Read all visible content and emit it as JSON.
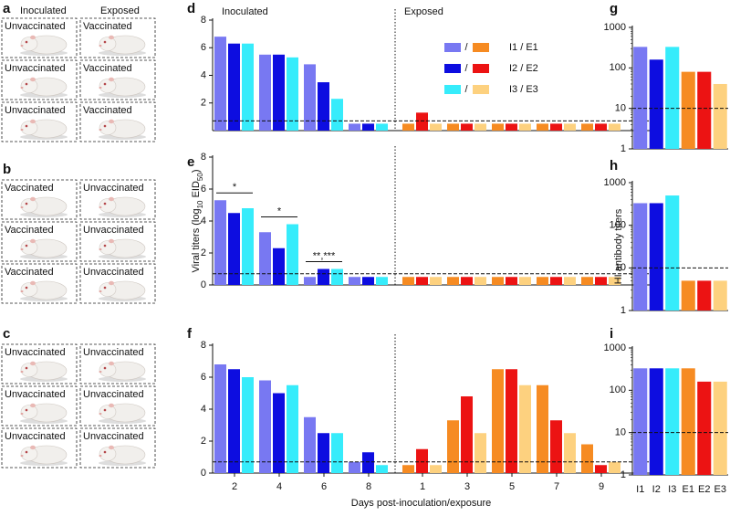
{
  "panels": [
    {
      "letter": "a",
      "header": [
        "Inoculated",
        "Exposed"
      ],
      "rows": [
        [
          "Unvaccinated",
          "Vaccinated"
        ],
        [
          "Unvaccinated",
          "Vaccinated"
        ],
        [
          "Unvaccinated",
          "Vaccinated"
        ]
      ]
    },
    {
      "letter": "b",
      "rows": [
        [
          "Vaccinated",
          "Unvaccinated"
        ],
        [
          "Vaccinated",
          "Unvaccinated"
        ],
        [
          "Vaccinated",
          "Unvaccinated"
        ]
      ]
    },
    {
      "letter": "c",
      "rows": [
        [
          "Unvaccinated",
          "Unvaccinated"
        ],
        [
          "Unvaccinated",
          "Unvaccinated"
        ],
        [
          "Unvaccinated",
          "Unvaccinated"
        ]
      ]
    }
  ],
  "chart_data": [
    {
      "type": "bar",
      "letter": "d",
      "top_labels": [
        "Inoculated",
        "Exposed"
      ],
      "categories": [
        null,
        null,
        null,
        null,
        null,
        null,
        null,
        null,
        null
      ],
      "ylim": [
        0,
        8
      ],
      "yticks": [
        2,
        4,
        6,
        8
      ],
      "threshold": 0.7,
      "legend": [
        {
          "sep": "/",
          "label": "I1 / E1"
        },
        {
          "sep": "/",
          "label": "I2 / E2"
        },
        {
          "sep": "/",
          "label": "I3 / E3"
        }
      ],
      "series": [
        {
          "color": "#7878f2",
          "values": [
            6.8,
            5.5,
            4.8,
            0.5,
            null,
            null,
            null,
            null,
            null
          ]
        },
        {
          "color": "#0d0de0",
          "values": [
            6.3,
            5.5,
            3.5,
            0.5,
            null,
            null,
            null,
            null,
            null
          ]
        },
        {
          "color": "#36ecfb",
          "values": [
            6.3,
            5.3,
            2.3,
            0.5,
            null,
            null,
            null,
            null,
            null
          ]
        },
        {
          "color": "#f68b22",
          "values": [
            null,
            null,
            null,
            null,
            0.5,
            0.5,
            0.5,
            0.5,
            0.5
          ]
        },
        {
          "color": "#ec1313",
          "values": [
            null,
            null,
            null,
            null,
            1.3,
            0.5,
            0.5,
            0.5,
            0.5
          ]
        },
        {
          "color": "#fdd17f",
          "values": [
            null,
            null,
            null,
            null,
            0.5,
            0.5,
            0.5,
            0.5,
            0.5
          ]
        }
      ]
    },
    {
      "type": "bar",
      "letter": "e",
      "ylabel": [
        "Viral titers (log",
        "10",
        " EID",
        "50",
        ")"
      ],
      "categories": [
        null,
        null,
        null,
        null,
        null,
        null,
        null,
        null,
        null
      ],
      "ylim": [
        0,
        8
      ],
      "yticks": [
        0,
        2,
        4,
        6,
        8
      ],
      "threshold": 0.7,
      "annotations": [
        "*",
        "*",
        "**,***"
      ],
      "series": [
        {
          "color": "#7878f2",
          "values": [
            5.3,
            3.3,
            0.5,
            0.5,
            null,
            null,
            null,
            null,
            null
          ]
        },
        {
          "color": "#0d0de0",
          "values": [
            4.5,
            2.3,
            1.0,
            0.5,
            null,
            null,
            null,
            null,
            null
          ]
        },
        {
          "color": "#36ecfb",
          "values": [
            4.8,
            3.8,
            1.0,
            0.5,
            null,
            null,
            null,
            null,
            null
          ]
        },
        {
          "color": "#f68b22",
          "values": [
            null,
            null,
            null,
            null,
            0.5,
            0.5,
            0.5,
            0.5,
            0.5
          ]
        },
        {
          "color": "#ec1313",
          "values": [
            null,
            null,
            null,
            null,
            0.5,
            0.5,
            0.5,
            0.5,
            0.5
          ]
        },
        {
          "color": "#fdd17f",
          "values": [
            null,
            null,
            null,
            null,
            0.5,
            0.5,
            0.5,
            0.5,
            0.5
          ]
        }
      ]
    },
    {
      "type": "bar",
      "letter": "f",
      "xlabel": "Days post-inoculation/exposure",
      "categories": [
        "2",
        "4",
        "6",
        "8",
        "1",
        "3",
        "5",
        "7",
        "9"
      ],
      "ylim": [
        0,
        8
      ],
      "yticks": [
        0,
        2,
        4,
        6,
        8
      ],
      "threshold": 0.7,
      "series": [
        {
          "color": "#7878f2",
          "values": [
            6.8,
            5.8,
            3.5,
            0.7,
            null,
            null,
            null,
            null,
            null
          ]
        },
        {
          "color": "#0d0de0",
          "values": [
            6.5,
            5.0,
            2.5,
            1.3,
            null,
            null,
            null,
            null,
            null
          ]
        },
        {
          "color": "#36ecfb",
          "values": [
            6.0,
            5.5,
            2.5,
            0.5,
            null,
            null,
            null,
            null,
            null
          ]
        },
        {
          "color": "#f68b22",
          "values": [
            null,
            null,
            null,
            null,
            0.5,
            3.3,
            6.5,
            5.5,
            1.8
          ]
        },
        {
          "color": "#ec1313",
          "values": [
            null,
            null,
            null,
            null,
            1.5,
            4.8,
            6.5,
            3.3,
            0.5
          ]
        },
        {
          "color": "#fdd17f",
          "values": [
            null,
            null,
            null,
            null,
            0.5,
            2.5,
            5.5,
            2.5,
            0.7
          ]
        }
      ]
    },
    {
      "type": "bar",
      "letter": "g",
      "log": true,
      "ylim": [
        1,
        1000
      ],
      "yticks": [
        1,
        10,
        100,
        1000
      ],
      "threshold": 10,
      "categories": [
        null,
        null,
        null,
        null,
        null,
        null
      ],
      "colors": [
        "#7878f2",
        "#0d0de0",
        "#36ecfb",
        "#f68b22",
        "#ec1313",
        "#fdd17f"
      ],
      "values": [
        330,
        160,
        330,
        80,
        80,
        40
      ]
    },
    {
      "type": "bar",
      "letter": "h",
      "log": true,
      "ylabel": [
        "HI antibody titers"
      ],
      "ylim": [
        1,
        1000
      ],
      "yticks": [
        1,
        10,
        100,
        1000
      ],
      "threshold": 10,
      "categories": [
        null,
        null,
        null,
        null,
        null,
        null
      ],
      "colors": [
        "#7878f2",
        "#0d0de0",
        "#36ecfb",
        "#f68b22",
        "#ec1313",
        "#fdd17f"
      ],
      "values": [
        330,
        330,
        500,
        5,
        5,
        5
      ]
    },
    {
      "type": "bar",
      "letter": "i",
      "log": true,
      "ylim": [
        1,
        1000
      ],
      "yticks": [
        1,
        10,
        100,
        1000
      ],
      "threshold": 10,
      "categories": [
        "I1",
        "I2",
        "I3",
        "E1",
        "E2",
        "E3"
      ],
      "colors": [
        "#7878f2",
        "#0d0de0",
        "#36ecfb",
        "#f68b22",
        "#ec1313",
        "#fdd17f"
      ],
      "values": [
        330,
        330,
        330,
        330,
        160,
        160
      ]
    }
  ]
}
